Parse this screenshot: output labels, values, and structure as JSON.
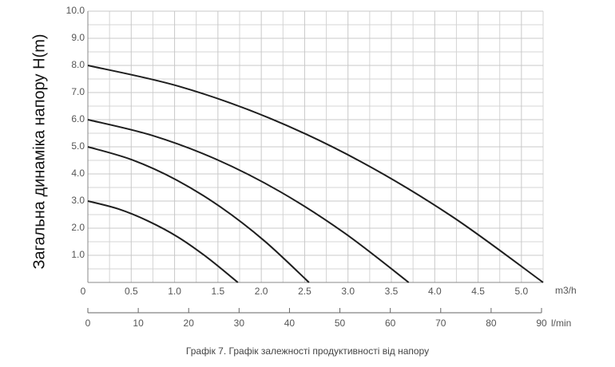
{
  "chart_data": {
    "type": "line",
    "ylabel": "Загальна динаміка напору H(m)",
    "caption": "Графік 7. Графік залежності продуктивності від напору",
    "xunit": "m3/h",
    "x2unit": "l/min",
    "xlim": [
      0,
      5.25
    ],
    "ylim": [
      0,
      10
    ],
    "x2lim": [
      0,
      90
    ],
    "xticks": [
      {
        "value": 0,
        "label": "0"
      },
      0.5,
      {
        "value": 1,
        "label": "1.0"
      },
      1.5,
      {
        "value": 2,
        "label": "2.0"
      },
      2.5,
      {
        "value": 3,
        "label": "3.0"
      },
      3.5,
      {
        "value": 4,
        "label": "4.0"
      },
      4.5,
      {
        "value": 5,
        "label": "5.0"
      }
    ],
    "yticks": [
      {
        "value": 1,
        "label": "1.0"
      },
      {
        "value": 2,
        "label": "2.0"
      },
      {
        "value": 3,
        "label": "3.0"
      },
      {
        "value": 4,
        "label": "4.0"
      },
      {
        "value": 5,
        "label": "5.0"
      },
      {
        "value": 6,
        "label": "6.0"
      },
      {
        "value": 7,
        "label": "7.0"
      },
      {
        "value": 8,
        "label": "8.0"
      },
      {
        "value": 9,
        "label": "9.0"
      },
      {
        "value": 10,
        "label": "10.0"
      }
    ],
    "x2ticks": [
      0,
      10,
      20,
      30,
      40,
      50,
      60,
      70,
      80,
      90
    ],
    "minor_xticks": [
      0.25,
      0.75,
      1.25,
      1.75,
      2.25,
      2.75,
      3.25,
      3.75,
      4.25,
      4.75,
      5.25
    ],
    "minor_yticks": [
      0.5,
      1.5,
      2.5,
      3.5,
      4.5,
      5.5,
      6.5,
      7.5,
      8.5,
      9.5
    ],
    "grid": true,
    "series": [
      {
        "color": "#1e1e1e",
        "x": [
          0,
          0.35,
          0.69,
          1.04,
          1.38,
          1.73
        ],
        "values": [
          3,
          2.71,
          2.27,
          1.67,
          0.91,
          0
        ]
      },
      {
        "color": "#1e1e1e",
        "x": [
          0,
          0.51,
          1.02,
          1.53,
          2.04,
          2.55
        ],
        "values": [
          5,
          4.52,
          3.78,
          2.78,
          1.52,
          0
        ]
      },
      {
        "color": "#1e1e1e",
        "x": [
          0,
          0.74,
          1.48,
          2.22,
          2.96,
          3.7
        ],
        "values": [
          6,
          5.42,
          4.54,
          3.34,
          1.82,
          0
        ]
      },
      {
        "color": "#1e1e1e",
        "x": [
          0,
          1.05,
          2.1,
          3.15,
          4.2,
          5.25
        ],
        "values": [
          8,
          7.23,
          6.05,
          4.45,
          2.43,
          0
        ]
      }
    ]
  }
}
